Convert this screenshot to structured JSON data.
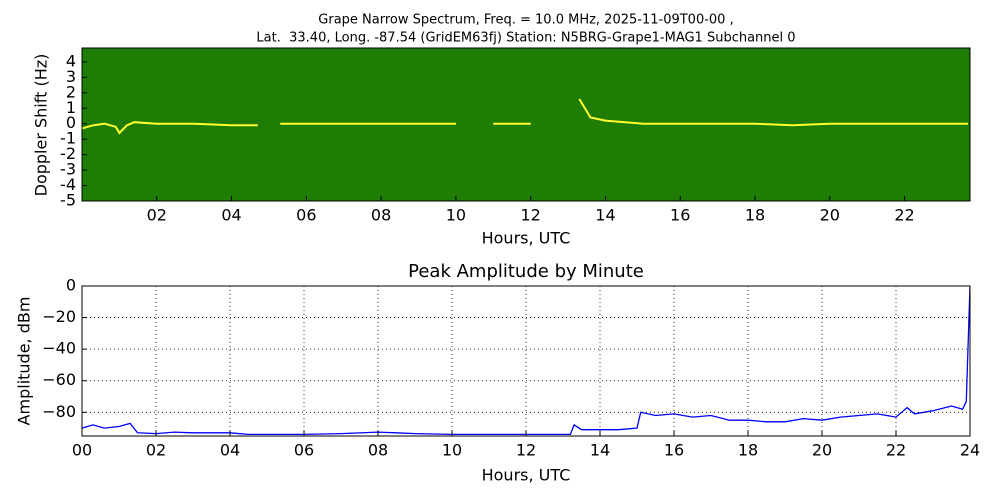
{
  "chart_data": [
    {
      "type": "spectrogram",
      "title": "Grape Narrow Spectrum, Freq. = 10.0 MHz, 2025-11-09T00-00 ,",
      "subtitle": "Lat.  33.40, Long. -87.54 (GridEM63fj) Station: N5BRG-Grape1-MAG1 Subchannel 0",
      "x_label": "Hours, UTC",
      "y_label": "Doppler Shift (Hz)",
      "background_color": "#1f7d05",
      "xlim": [
        0,
        23.75
      ],
      "xticks": [
        {
          "value": 2,
          "label": "02"
        },
        {
          "value": 4,
          "label": "04"
        },
        {
          "value": 6,
          "label": "06"
        },
        {
          "value": 8,
          "label": "08"
        },
        {
          "value": 10,
          "label": "10"
        },
        {
          "value": 12,
          "label": "12"
        },
        {
          "value": 14,
          "label": "14"
        },
        {
          "value": 16,
          "label": "16"
        },
        {
          "value": 18,
          "label": "18"
        },
        {
          "value": 20,
          "label": "20"
        },
        {
          "value": 22,
          "label": "22"
        }
      ],
      "ylim": [
        -5,
        4.9
      ],
      "yticks": [
        4,
        3,
        2,
        1,
        0,
        -1,
        -2,
        -3,
        -4,
        -5
      ],
      "grid": false,
      "series": [
        {
          "color": "#ffff30",
          "x": [
            0,
            0.3,
            0.6,
            0.9,
            1.0,
            1.2,
            1.4,
            2,
            3,
            4,
            4.7,
            5.0,
            5.3,
            6,
            7,
            8,
            9,
            10,
            10.5,
            11,
            12,
            13.2,
            13.3,
            13.6,
            14,
            15,
            16,
            17,
            18,
            19,
            20,
            21,
            22,
            23,
            23.7
          ],
          "values": [
            -0.3,
            -0.1,
            0,
            -0.2,
            -0.6,
            -0.1,
            0.1,
            0,
            0,
            -0.1,
            -0.1,
            null,
            0,
            0,
            0,
            0,
            0,
            0,
            null,
            0,
            0,
            null,
            1.6,
            0.4,
            0.2,
            0,
            0,
            0,
            0,
            -0.1,
            0,
            0,
            0,
            0,
            0
          ]
        }
      ]
    },
    {
      "type": "line",
      "title": "Peak Amplitude by Minute",
      "x_label": "Hours, UTC",
      "y_label": "Amplitude, dBm",
      "xlim": [
        0,
        24
      ],
      "xticks": [
        {
          "value": 0,
          "label": "00"
        },
        {
          "value": 2,
          "label": "02"
        },
        {
          "value": 4,
          "label": "04"
        },
        {
          "value": 6,
          "label": "06"
        },
        {
          "value": 8,
          "label": "08"
        },
        {
          "value": 10,
          "label": "10"
        },
        {
          "value": 12,
          "label": "12"
        },
        {
          "value": 14,
          "label": "14"
        },
        {
          "value": 16,
          "label": "16"
        },
        {
          "value": 18,
          "label": "18"
        },
        {
          "value": 20,
          "label": "20"
        },
        {
          "value": 22,
          "label": "22"
        },
        {
          "value": 24,
          "label": "24"
        }
      ],
      "ylim": [
        -95,
        0
      ],
      "yticks": [
        0,
        {
          "value": -20,
          "label": "−20"
        },
        {
          "value": -40,
          "label": "−40"
        },
        {
          "value": -60,
          "label": "−60"
        },
        {
          "value": -80,
          "label": "−80"
        }
      ],
      "grid": true,
      "series": [
        {
          "color": "#0000ff",
          "x": [
            0,
            0.3,
            0.6,
            1.0,
            1.3,
            1.5,
            2,
            2.5,
            3,
            4,
            4.5,
            5,
            6,
            7,
            8,
            8.5,
            9,
            10,
            11,
            12,
            13.2,
            13.3,
            13.5,
            14,
            14.5,
            15,
            15.1,
            15.5,
            16,
            16.5,
            17,
            17.5,
            18,
            18.5,
            19,
            19.5,
            20,
            20.5,
            21,
            21.5,
            22,
            22.3,
            22.5,
            23,
            23.5,
            23.8,
            23.9,
            24
          ],
          "values": [
            -90,
            -88,
            -90,
            -89,
            -87,
            -93,
            -93.5,
            -92.5,
            -93,
            -93,
            -94,
            -94,
            -94,
            -93.5,
            -92.5,
            -93,
            -93.5,
            -94,
            -94,
            -94,
            -94,
            -88,
            -91,
            -91,
            -91,
            -90,
            -80,
            -82,
            -81,
            -83,
            -82,
            -85,
            -85,
            -86,
            -86,
            -84,
            -85,
            -83,
            -82,
            -81,
            -83,
            -77,
            -81,
            -79,
            -76,
            -78,
            -73,
            0
          ]
        }
      ]
    }
  ]
}
